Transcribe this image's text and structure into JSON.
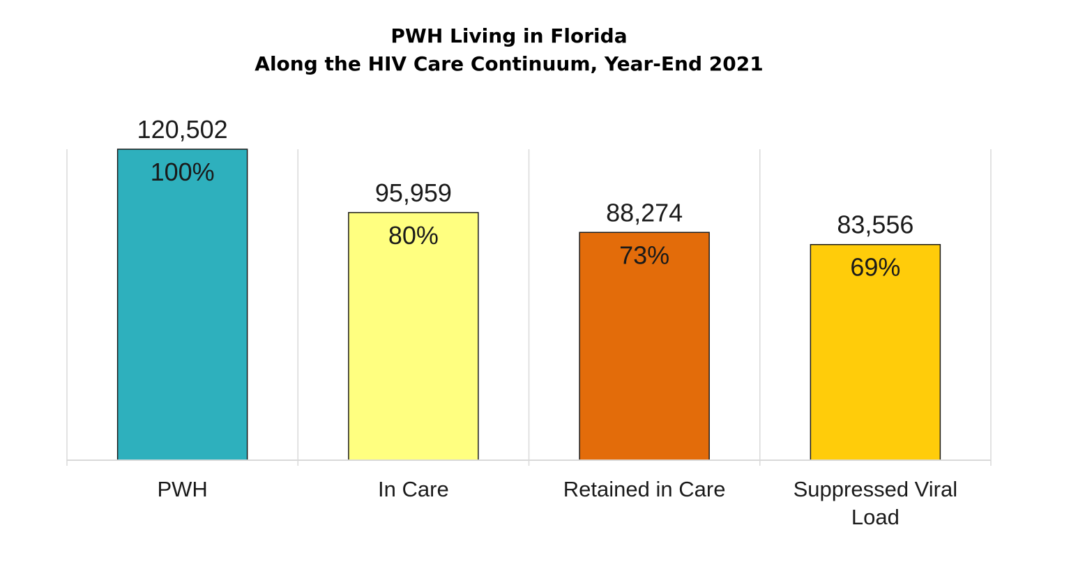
{
  "chart_data": {
    "type": "bar",
    "title": "PWH Living in Florida",
    "subtitle": "Along the HIV Care Continuum, Year-End 2021",
    "categories": [
      "PWH",
      "In Care",
      "Retained in Care",
      "Suppressed Viral Load"
    ],
    "category_lines": [
      [
        "PWH"
      ],
      [
        "In Care"
      ],
      [
        "Retained in Care"
      ],
      [
        "Suppressed Viral",
        "Load"
      ]
    ],
    "values": [
      120502,
      95959,
      88274,
      83556
    ],
    "value_labels": [
      "120,502",
      "95,959",
      "88,274",
      "83,556"
    ],
    "percent_labels": [
      "100%",
      "80%",
      "73%",
      "69%"
    ],
    "colors": [
      "#2EB0BD",
      "#FFFF80",
      "#E36C0A",
      "#FFCC0A"
    ],
    "xlabel": "",
    "ylabel": "",
    "ylim": [
      0,
      120502
    ],
    "grid": "vertical-separators",
    "legend": "none"
  }
}
